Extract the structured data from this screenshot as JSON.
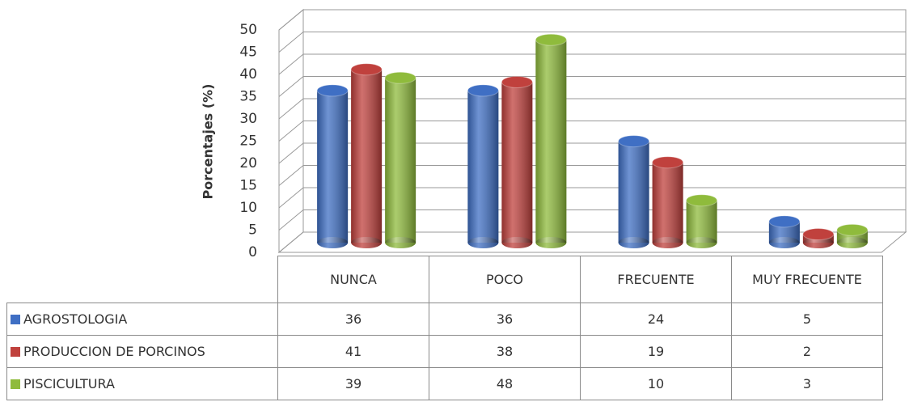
{
  "chart_data": {
    "type": "bar",
    "y_label": "Porcentajes (%)",
    "categories": [
      "NUNCA",
      "POCO",
      "FRECUENTE",
      "MUY FRECUENTE"
    ],
    "series": [
      {
        "name": "AGROSTOLOGIA",
        "color": "#3f6fc4",
        "values": [
          36,
          36,
          24,
          5
        ]
      },
      {
        "name": "PRODUCCION DE PORCINOS",
        "color": "#c0413d",
        "values": [
          41,
          38,
          19,
          2
        ]
      },
      {
        "name": "PISCICULTURA",
        "color": "#8fbb3c",
        "values": [
          39,
          48,
          10,
          3
        ]
      }
    ],
    "ylim": [
      0,
      50
    ],
    "yticks": [
      0,
      5,
      10,
      15,
      20,
      25,
      30,
      35,
      40,
      45,
      50
    ],
    "grid": true
  }
}
